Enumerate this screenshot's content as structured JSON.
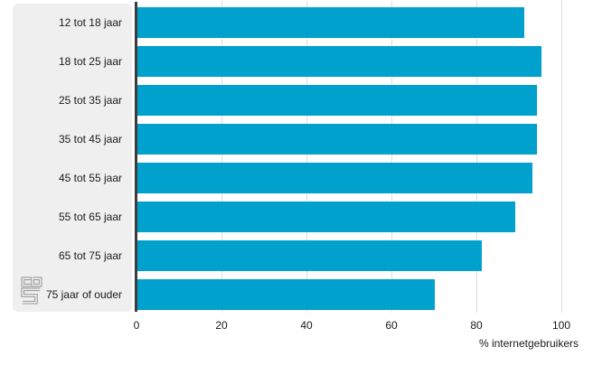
{
  "chart_data": {
    "type": "bar",
    "orientation": "horizontal",
    "categories": [
      "12 tot 18 jaar",
      "18 tot 25 jaar",
      "25 tot 35 jaar",
      "35 tot 45 jaar",
      "45 tot 55 jaar",
      "55 tot 65 jaar",
      "65 tot 75 jaar",
      "75 jaar of ouder"
    ],
    "values": [
      91,
      95,
      94,
      94,
      93,
      89,
      81,
      70
    ],
    "xlabel": "% internetgebruikers",
    "xlim": [
      0,
      100
    ],
    "xticks": [
      0,
      20,
      40,
      60,
      80,
      100
    ],
    "grid": true,
    "legend": false,
    "bar_color": "#00a1cd"
  },
  "branding": {
    "logo_name": "cbs-logo"
  },
  "colors": {
    "bar": "#00a1cd",
    "panel_background": "#efefef",
    "axis_line": "#3c3c3c",
    "gridline": "#dcdcdc",
    "text": "#1a1a1a",
    "logo": "#9a9a9a",
    "background": "#ffffff"
  }
}
